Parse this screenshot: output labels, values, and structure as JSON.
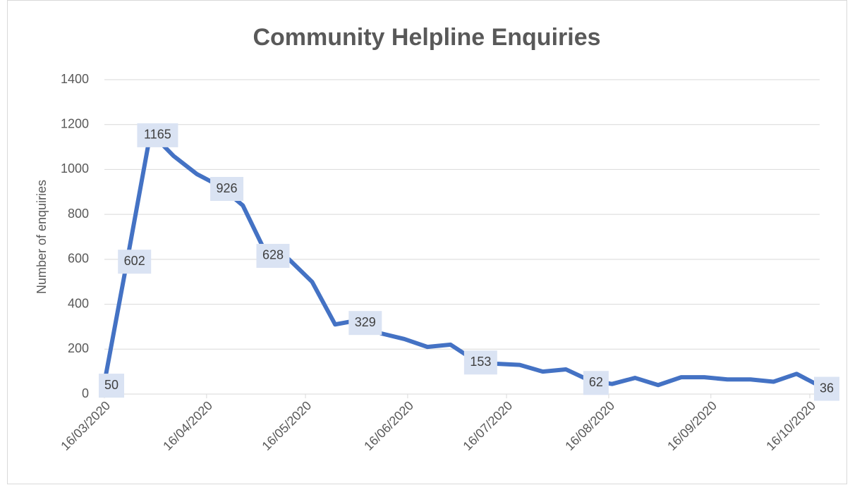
{
  "chart_data": {
    "type": "line",
    "title": "Community Helpline Enquiries",
    "y_label": "Number of enquiries",
    "x": [
      "16/03/2020",
      "23/03/2020",
      "30/03/2020",
      "06/04/2020",
      "13/04/2020",
      "20/04/2020",
      "27/04/2020",
      "04/05/2020",
      "11/05/2020",
      "18/05/2020",
      "25/05/2020",
      "01/06/2020",
      "08/06/2020",
      "15/06/2020",
      "22/06/2020",
      "29/06/2020",
      "06/07/2020",
      "13/07/2020",
      "20/07/2020",
      "27/07/2020",
      "03/08/2020",
      "10/08/2020",
      "17/08/2020",
      "24/08/2020",
      "31/08/2020",
      "07/09/2020",
      "14/09/2020",
      "21/09/2020",
      "28/09/2020",
      "05/10/2020",
      "12/10/2020",
      "19/10/2020"
    ],
    "series": [
      {
        "name": "Enquiries",
        "color": "#4472c4",
        "values": [
          50,
          602,
          1165,
          1060,
          980,
          926,
          840,
          628,
          600,
          500,
          310,
          329,
          270,
          245,
          210,
          220,
          153,
          135,
          130,
          100,
          110,
          62,
          45,
          72,
          40,
          75,
          75,
          65,
          65,
          55,
          90,
          36
        ],
        "value_labels": [
          "50",
          "602",
          "1165",
          null,
          null,
          "926",
          null,
          "628",
          null,
          null,
          null,
          "329",
          null,
          null,
          null,
          null,
          "153",
          null,
          null,
          null,
          null,
          "62",
          null,
          null,
          null,
          null,
          null,
          null,
          null,
          null,
          null,
          "36"
        ]
      }
    ],
    "xlim": [
      "16/03/2020",
      "19/10/2020"
    ],
    "xticks": [
      "16/03/2020",
      "16/04/2020",
      "16/05/2020",
      "16/06/2020",
      "16/07/2020",
      "16/08/2020",
      "16/09/2020",
      "16/10/2020"
    ],
    "ylim": [
      0,
      1400
    ],
    "yticks": [
      0,
      200,
      400,
      600,
      800,
      1000,
      1200,
      1400
    ],
    "grid": true
  }
}
